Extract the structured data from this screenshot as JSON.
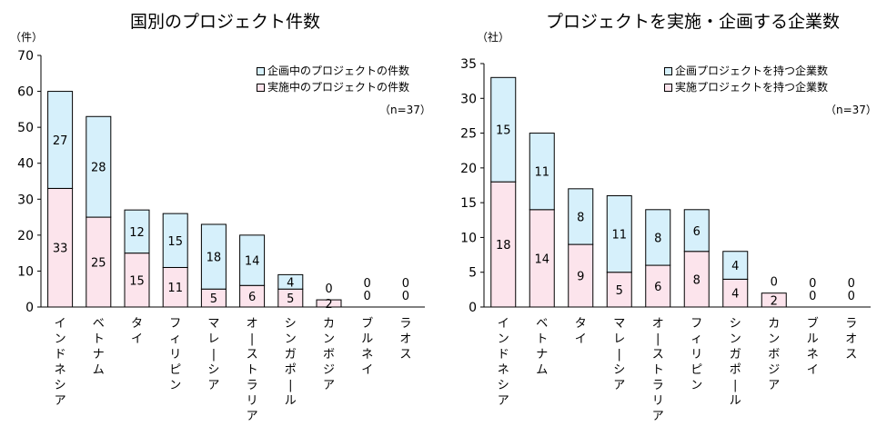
{
  "chart_data": [
    {
      "type": "bar",
      "stacked": true,
      "title": "国別のプロジェクト件数",
      "unit_label": "（件）",
      "categories": [
        "インドネシア",
        "ベトナム",
        "タイ",
        "フィリピン",
        "マレーシア",
        "オーストラリア",
        "シンガポール",
        "カンボジア",
        "ブルネイ",
        "ラオス"
      ],
      "series": [
        {
          "name": "実施中のプロジェクトの件数",
          "values": [
            33,
            25,
            15,
            11,
            5,
            6,
            5,
            2,
            0,
            0
          ],
          "color": "#fce4ec"
        },
        {
          "name": "企画中のプロジェクトの件数",
          "values": [
            27,
            28,
            12,
            15,
            18,
            14,
            4,
            0,
            0,
            0
          ],
          "color": "#d6f0fb"
        }
      ],
      "ylim": [
        0,
        70
      ],
      "yticks": [
        0,
        10,
        20,
        30,
        40,
        50,
        60,
        70
      ],
      "note": "（n=37）",
      "legend_position": "top-right"
    },
    {
      "type": "bar",
      "stacked": true,
      "title": "プロジェクトを実施・企画する企業数",
      "unit_label": "（社）",
      "categories": [
        "インドネシア",
        "ベトナム",
        "タイ",
        "マレーシア",
        "オーストラリア",
        "フィリピン",
        "シンガポール",
        "カンボジア",
        "ブルネイ",
        "ラオス"
      ],
      "series": [
        {
          "name": "実施プロジェクトを持つ企業数",
          "values": [
            18,
            14,
            9,
            5,
            6,
            8,
            4,
            2,
            0,
            0
          ],
          "color": "#fce4ec"
        },
        {
          "name": "企画プロジェクトを持つ企業数",
          "values": [
            15,
            11,
            8,
            11,
            8,
            6,
            4,
            0,
            0,
            0
          ],
          "color": "#d6f0fb"
        }
      ],
      "ylim": [
        0,
        35
      ],
      "yticks": [
        0,
        5,
        10,
        15,
        20,
        25,
        30,
        35
      ],
      "note": "（n=37）",
      "legend_position": "top-right"
    }
  ]
}
